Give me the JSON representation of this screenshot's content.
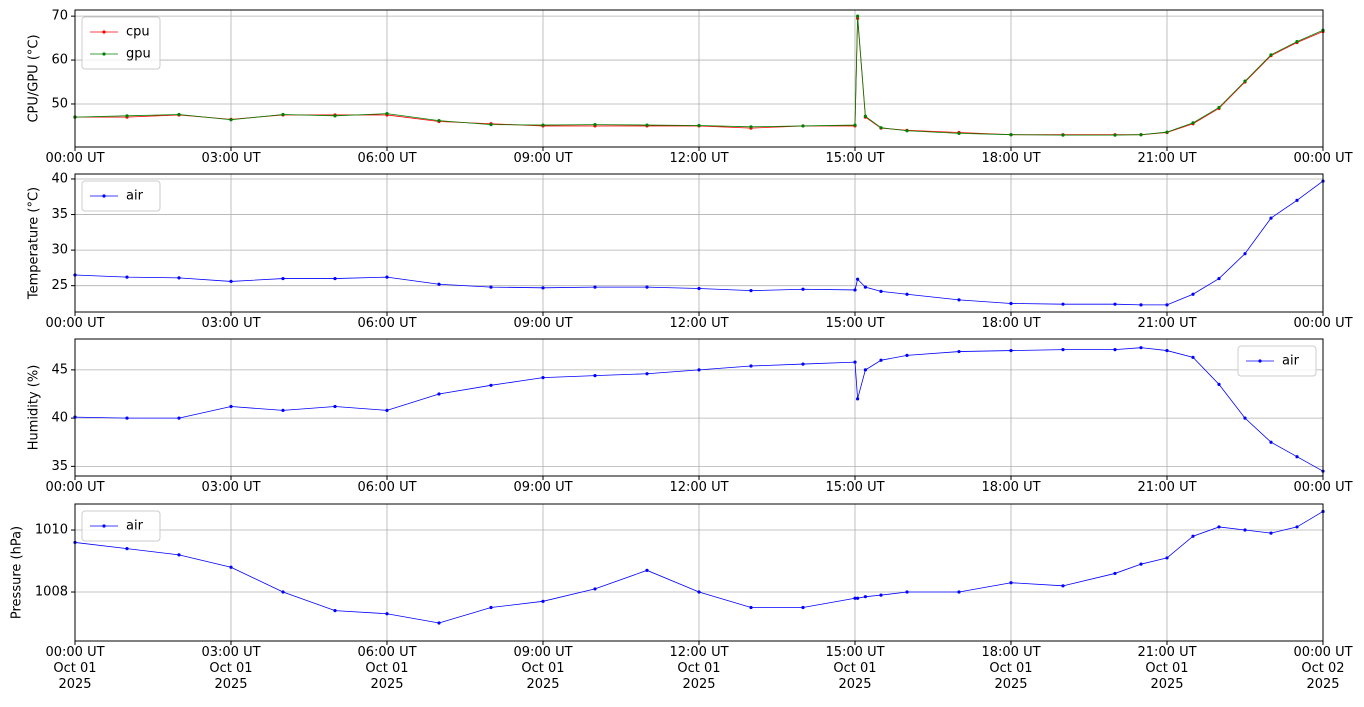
{
  "chart_data": [
    {
      "type": "line",
      "ylabel": "CPU/GPU (°C)",
      "x": [
        0,
        1,
        2,
        3,
        4,
        5,
        6,
        7,
        8,
        9,
        10,
        11,
        12,
        13,
        14,
        15,
        15.05,
        15.2,
        15.5,
        16,
        17,
        18,
        19,
        20,
        20.5,
        21,
        21.5,
        22,
        22.5,
        23,
        23.5,
        24
      ],
      "series": [
        {
          "name": "cpu",
          "color": "#ff0000",
          "values": [
            47,
            47,
            47.5,
            46.5,
            47.5,
            47.5,
            47.5,
            46,
            45.5,
            45,
            45,
            45,
            45,
            44.5,
            45,
            45,
            69.5,
            47,
            44.5,
            44,
            43.5,
            43,
            43,
            43,
            43,
            43.5,
            45.5,
            49,
            55,
            61,
            64,
            66.5
          ]
        },
        {
          "name": "gpu",
          "color": "#008000",
          "values": [
            47,
            47.3,
            47.6,
            46.4,
            47.6,
            47.3,
            47.8,
            46.2,
            45.3,
            45.2,
            45.3,
            45.2,
            45.1,
            44.8,
            45,
            45.2,
            70,
            47.2,
            44.6,
            43.9,
            43.3,
            43,
            42.9,
            42.9,
            43,
            43.6,
            45.7,
            49.2,
            55.2,
            61.2,
            64.2,
            66.8
          ]
        }
      ],
      "xlim": [
        0,
        24
      ],
      "xticks": [
        {
          "value": 0,
          "label": "00:00 UT"
        },
        {
          "value": 3,
          "label": "03:00 UT"
        },
        {
          "value": 6,
          "label": "06:00 UT"
        },
        {
          "value": 9,
          "label": "09:00 UT"
        },
        {
          "value": 12,
          "label": "12:00 UT"
        },
        {
          "value": 15,
          "label": "15:00 UT"
        },
        {
          "value": 18,
          "label": "18:00 UT"
        },
        {
          "value": 21,
          "label": "21:00 UT"
        },
        {
          "value": 24,
          "label": "00:00 UT"
        }
      ],
      "ylim": [
        40.2,
        71.4
      ],
      "yticks": [
        50,
        60,
        70
      ],
      "grid": true,
      "legend": "upper left"
    },
    {
      "type": "line",
      "ylabel": "Temperature (°C)",
      "x": [
        0,
        1,
        2,
        3,
        4,
        5,
        6,
        7,
        8,
        9,
        10,
        11,
        12,
        13,
        14,
        15,
        15.05,
        15.2,
        15.5,
        16,
        17,
        18,
        19,
        20,
        20.5,
        21,
        21.5,
        22,
        22.5,
        23,
        23.5,
        24
      ],
      "series": [
        {
          "name": "air",
          "color": "#0000ff",
          "values": [
            26.5,
            26.2,
            26.1,
            25.6,
            26,
            26,
            26.2,
            25.2,
            24.8,
            24.7,
            24.8,
            24.8,
            24.6,
            24.3,
            24.5,
            24.4,
            25.9,
            24.8,
            24.2,
            23.8,
            23,
            22.5,
            22.4,
            22.4,
            22.3,
            22.3,
            23.8,
            26,
            29.5,
            34.5,
            37,
            39.7
          ]
        }
      ],
      "xlim": [
        0,
        24
      ],
      "xticks": [
        {
          "value": 0,
          "label": "00:00 UT"
        },
        {
          "value": 3,
          "label": "03:00 UT"
        },
        {
          "value": 6,
          "label": "06:00 UT"
        },
        {
          "value": 9,
          "label": "09:00 UT"
        },
        {
          "value": 12,
          "label": "12:00 UT"
        },
        {
          "value": 15,
          "label": "15:00 UT"
        },
        {
          "value": 18,
          "label": "18:00 UT"
        },
        {
          "value": 21,
          "label": "21:00 UT"
        },
        {
          "value": 24,
          "label": "00:00 UT"
        }
      ],
      "ylim": [
        21.3,
        40.7
      ],
      "yticks": [
        25,
        30,
        35,
        40
      ],
      "grid": true,
      "legend": "upper left"
    },
    {
      "type": "line",
      "ylabel": "Humidity (%)",
      "x": [
        0,
        1,
        2,
        3,
        4,
        5,
        6,
        7,
        8,
        9,
        10,
        11,
        12,
        13,
        14,
        15,
        15.05,
        15.2,
        15.5,
        16,
        17,
        18,
        19,
        20,
        20.5,
        21,
        21.5,
        22,
        22.5,
        23,
        23.5,
        24
      ],
      "series": [
        {
          "name": "air",
          "color": "#0000ff",
          "values": [
            40.1,
            40,
            40,
            41.2,
            40.8,
            41.2,
            40.8,
            42.5,
            43.4,
            44.2,
            44.4,
            44.6,
            45,
            45.4,
            45.6,
            45.8,
            42,
            45,
            46,
            46.5,
            46.9,
            47,
            47.1,
            47.1,
            47.3,
            47,
            46.3,
            43.5,
            40,
            37.5,
            36,
            34.5
          ]
        }
      ],
      "xlim": [
        0,
        24
      ],
      "xticks": [
        {
          "value": 0,
          "label": "00:00 UT"
        },
        {
          "value": 3,
          "label": "03:00 UT"
        },
        {
          "value": 6,
          "label": "06:00 UT"
        },
        {
          "value": 9,
          "label": "09:00 UT"
        },
        {
          "value": 12,
          "label": "12:00 UT"
        },
        {
          "value": 15,
          "label": "15:00 UT"
        },
        {
          "value": 18,
          "label": "18:00 UT"
        },
        {
          "value": 21,
          "label": "21:00 UT"
        },
        {
          "value": 24,
          "label": "00:00 UT"
        }
      ],
      "ylim": [
        34.0,
        48.2
      ],
      "yticks": [
        35,
        40,
        45
      ],
      "grid": true,
      "legend": "upper right"
    },
    {
      "type": "line",
      "ylabel": "Pressure (hPa)",
      "x": [
        0,
        1,
        2,
        3,
        4,
        5,
        6,
        7,
        8,
        9,
        10,
        11,
        12,
        13,
        14,
        15,
        15.05,
        15.2,
        15.5,
        16,
        17,
        18,
        19,
        20,
        20.5,
        21,
        21.5,
        22,
        22.5,
        23,
        23.5,
        24
      ],
      "series": [
        {
          "name": "air",
          "color": "#0000ff",
          "values": [
            1009.6,
            1009.4,
            1009.2,
            1008.8,
            1008.0,
            1007.4,
            1007.3,
            1007.0,
            1007.5,
            1007.7,
            1008.1,
            1008.7,
            1008.0,
            1007.5,
            1007.5,
            1007.8,
            1007.8,
            1007.85,
            1007.9,
            1008.0,
            1008.0,
            1008.3,
            1008.2,
            1008.6,
            1008.9,
            1009.1,
            1009.8,
            1010.1,
            1010.0,
            1009.9,
            1010.1,
            1010.6
          ]
        }
      ],
      "xlim": [
        0,
        24
      ],
      "xticks": [
        {
          "value": 0,
          "label": "00:00 UT\nOct 01\n2025"
        },
        {
          "value": 3,
          "label": "03:00 UT\nOct 01\n2025"
        },
        {
          "value": 6,
          "label": "06:00 UT\nOct 01\n2025"
        },
        {
          "value": 9,
          "label": "09:00 UT\nOct 01\n2025"
        },
        {
          "value": 12,
          "label": "12:00 UT\nOct 01\n2025"
        },
        {
          "value": 15,
          "label": "15:00 UT\nOct 01\n2025"
        },
        {
          "value": 18,
          "label": "18:00 UT\nOct 01\n2025"
        },
        {
          "value": 21,
          "label": "21:00 UT\nOct 01\n2025"
        },
        {
          "value": 24,
          "label": "00:00 UT\nOct 02\n2025"
        }
      ],
      "ylim": [
        1006.42,
        1010.84
      ],
      "yticks": [
        1008,
        1010
      ],
      "grid": true,
      "legend": "upper left"
    }
  ]
}
